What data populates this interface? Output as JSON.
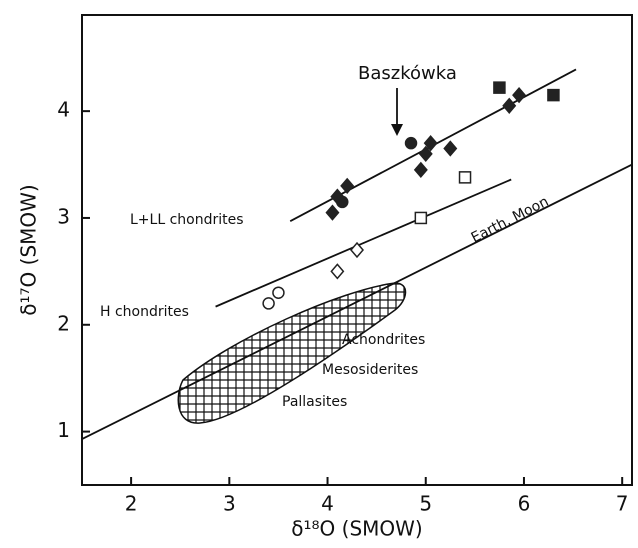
{
  "chart_data": {
    "type": "scatter",
    "xlabel": "δ¹⁸O (SMOW)",
    "ylabel": "δ¹⁷O (SMOW)",
    "xlim": [
      1.5,
      7.1
    ],
    "ylim": [
      0.5,
      4.9
    ],
    "xticks": [
      2,
      3,
      4,
      5,
      6,
      7
    ],
    "yticks": [
      1,
      2,
      3,
      4
    ],
    "series": [
      {
        "name": "L+LL chondrites",
        "color": "#222",
        "filled": true,
        "x": [
          4.05,
          4.1,
          4.15,
          4.2,
          4.85,
          4.95,
          5.0,
          5.05,
          5.25,
          5.75,
          5.85,
          5.95,
          6.3
        ],
        "values": [
          3.05,
          3.2,
          3.15,
          3.3,
          3.7,
          3.45,
          3.6,
          3.7,
          3.65,
          4.22,
          4.05,
          4.15,
          4.15
        ],
        "markers": [
          "diamond",
          "diamond",
          "circle",
          "diamond",
          "circle",
          "diamond",
          "diamond",
          "diamond",
          "diamond",
          "square",
          "diamond",
          "diamond",
          "square"
        ]
      },
      {
        "name": "H chondrites",
        "color": "#222",
        "filled": false,
        "x": [
          3.4,
          3.5,
          4.1,
          4.3,
          4.95,
          5.4
        ],
        "values": [
          2.2,
          2.3,
          2.5,
          2.7,
          3.0,
          3.38
        ],
        "markers": [
          "circle",
          "circle",
          "diamond",
          "diamond",
          "square",
          "square"
        ]
      }
    ],
    "lines": [
      {
        "name": "Earth, Moon",
        "x": [
          1.5,
          7.1
        ],
        "values": [
          0.93,
          3.5
        ]
      },
      {
        "x": [
          3.62,
          6.53
        ],
        "values": [
          2.97,
          4.39
        ]
      },
      {
        "x": [
          2.86,
          5.87
        ],
        "values": [
          2.17,
          3.36
        ]
      }
    ],
    "annotations": [
      "Baszkówka",
      "Achondrites",
      "Mesosiderites",
      "Pallasites"
    ]
  }
}
